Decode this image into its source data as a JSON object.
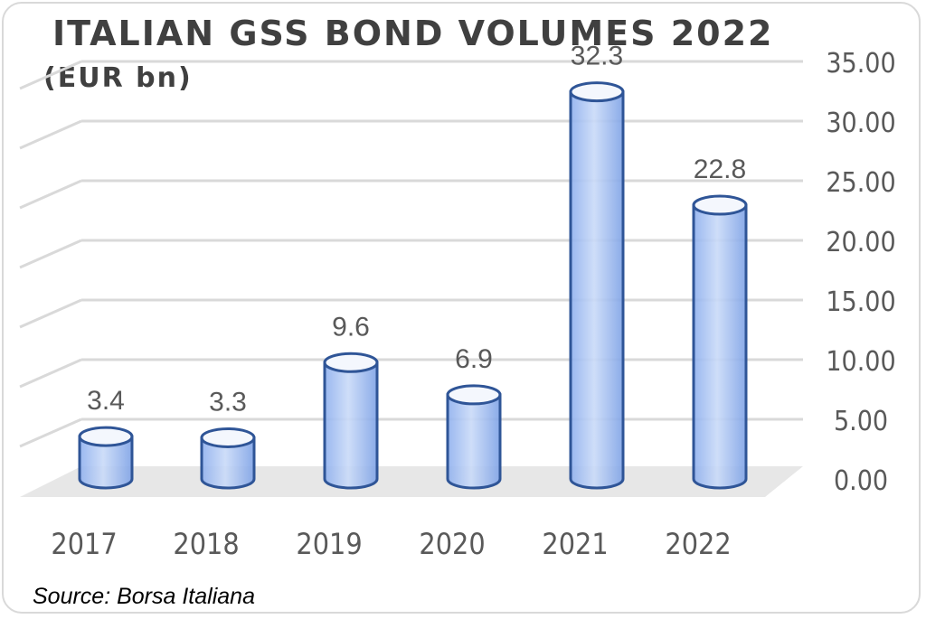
{
  "chart_data": {
    "type": "bar",
    "title": "ITALIAN GSS BOND VOLUMES 2022",
    "subtitle": "(EUR bn)",
    "categories": [
      "2017",
      "2018",
      "2019",
      "2020",
      "2021",
      "2022"
    ],
    "values": [
      3.4,
      3.3,
      9.6,
      6.9,
      32.3,
      22.8
    ],
    "data_labels": [
      "3.4",
      "3.3",
      "9.6",
      "6.9",
      "32.3",
      "22.8"
    ],
    "y_ticks": [
      "0.00",
      "5.00",
      "10.00",
      "15.00",
      "20.00",
      "25.00",
      "30.00",
      "35.00"
    ],
    "ylim": [
      0,
      35
    ],
    "y_axis_position": "right",
    "grid": true,
    "legend": "none",
    "bar_style": "3d-cylinder",
    "colors": {
      "bar_fill": "#a9c4f5",
      "bar_edge": "#2f5597",
      "gridline": "#d9d9d9",
      "floor": "#e7e7e7"
    }
  },
  "source": "Source: Borsa Italiana"
}
